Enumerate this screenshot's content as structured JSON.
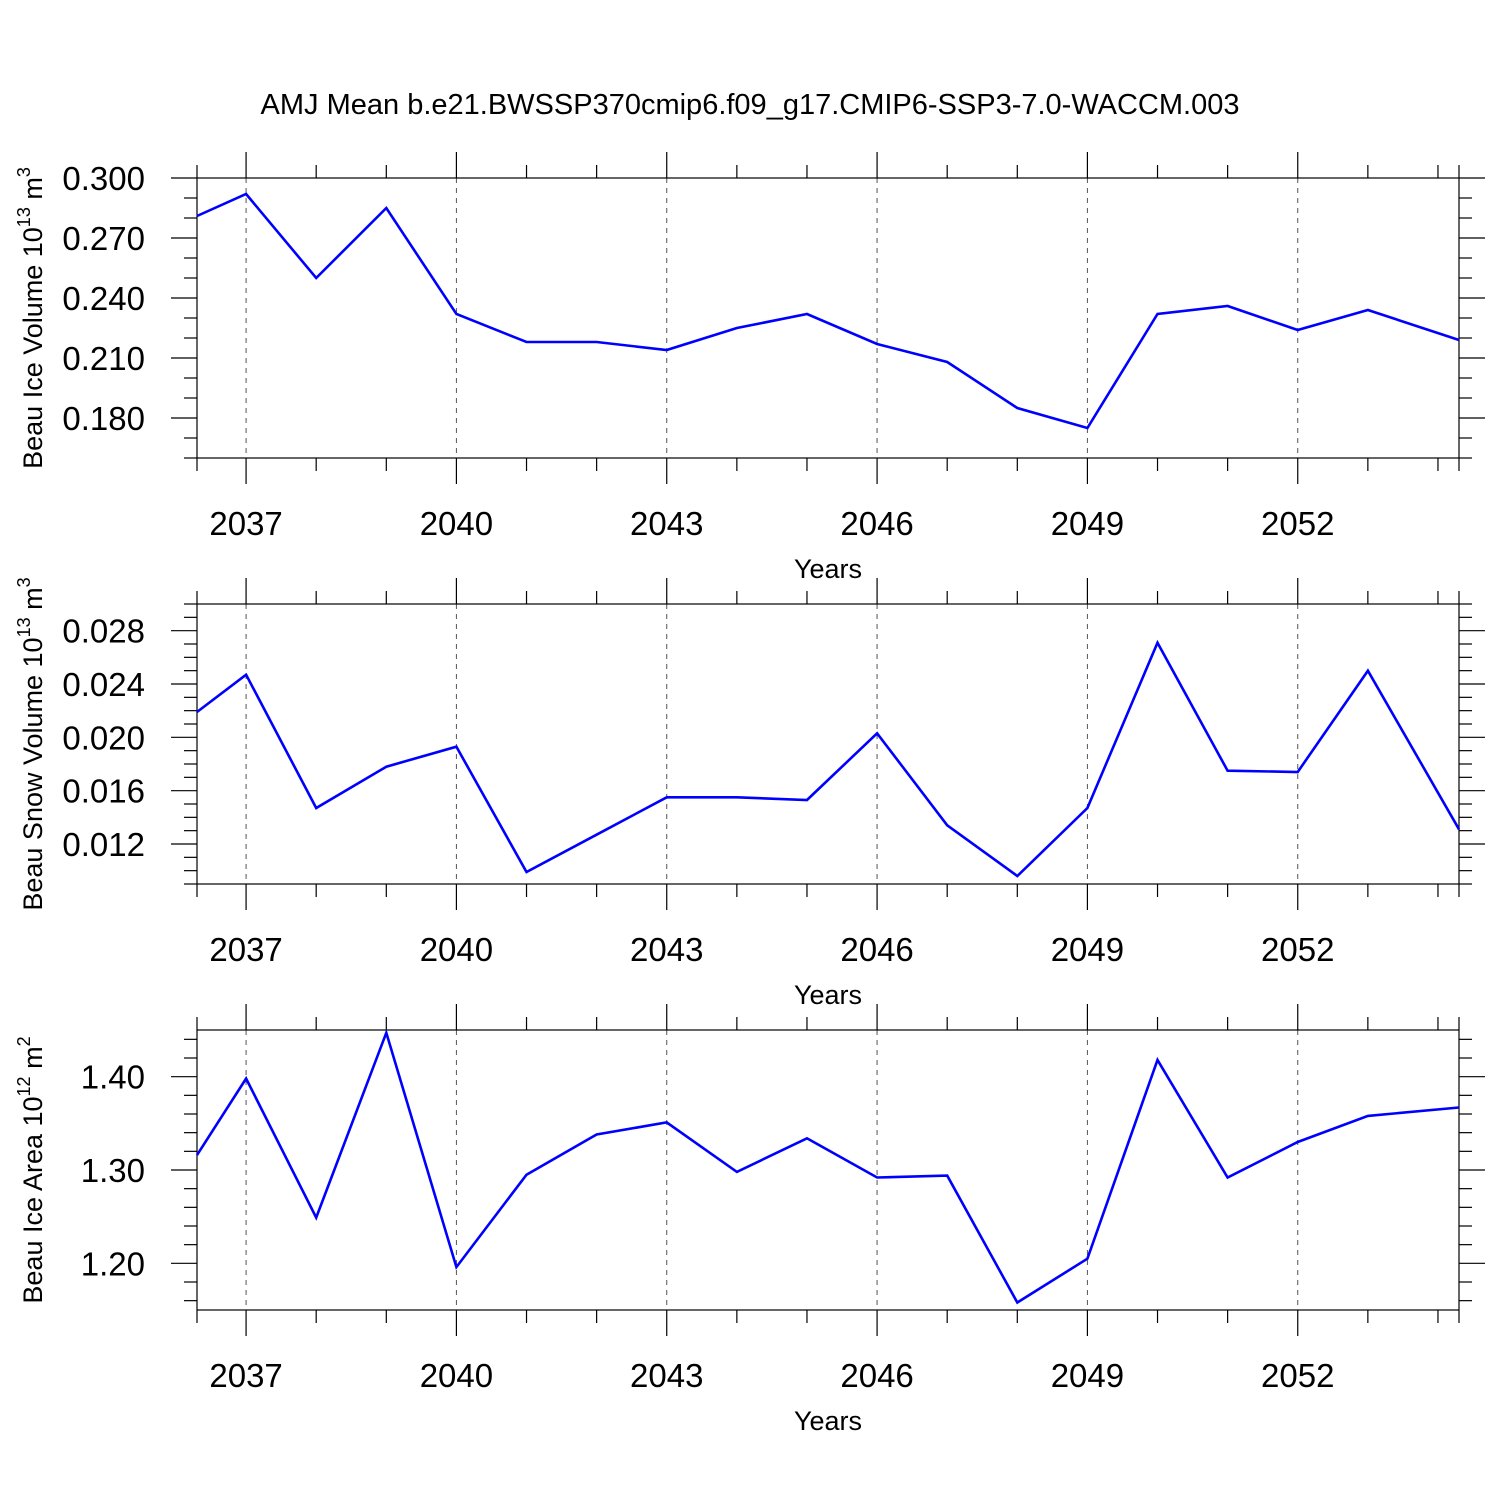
{
  "title": "AMJ Mean b.e21.BWSSP370cmip6.f09_g17.CMIP6-SSP3-7.0-WACCM.003",
  "line_color": "#0000ff",
  "chart_data": [
    {
      "type": "line",
      "ylabel": "Beau Ice Volume 10",
      "ylabel_exp": "13",
      "ylabel_unit": " m",
      "ylabel_unit_exp": "3",
      "xlabel": "Years",
      "xlim": [
        2036.3,
        2054.3
      ],
      "ylim": [
        0.16,
        0.3
      ],
      "x_ticks": [
        2037,
        2040,
        2043,
        2046,
        2049,
        2052
      ],
      "y_ticks": [
        0.18,
        0.21,
        0.24,
        0.27,
        0.3
      ],
      "y_tick_labels": [
        "0.180",
        "0.210",
        "0.240",
        "0.270",
        "0.300"
      ],
      "y_minor_step": 0.01,
      "x": [
        2036.3,
        2037,
        2038,
        2039,
        2040,
        2041,
        2042,
        2043,
        2044,
        2045,
        2046,
        2047,
        2048,
        2049,
        2050,
        2051,
        2052,
        2053,
        2054.3
      ],
      "values": [
        0.281,
        0.292,
        0.25,
        0.285,
        0.232,
        0.218,
        0.218,
        0.214,
        0.225,
        0.232,
        0.217,
        0.208,
        0.185,
        0.175,
        0.232,
        0.236,
        0.224,
        0.234,
        0.219
      ]
    },
    {
      "type": "line",
      "ylabel": "Beau Snow Volume 10",
      "ylabel_exp": "13",
      "ylabel_unit": " m",
      "ylabel_unit_exp": "3",
      "xlabel": "Years",
      "xlim": [
        2036.3,
        2054.3
      ],
      "ylim": [
        0.009,
        0.03
      ],
      "x_ticks": [
        2037,
        2040,
        2043,
        2046,
        2049,
        2052
      ],
      "y_ticks": [
        0.012,
        0.016,
        0.02,
        0.024,
        0.028
      ],
      "y_tick_labels": [
        "0.012",
        "0.016",
        "0.020",
        "0.024",
        "0.028"
      ],
      "y_minor_step": 0.001,
      "x": [
        2036.3,
        2037,
        2038,
        2039,
        2040,
        2041,
        2042,
        2043,
        2044,
        2045,
        2046,
        2047,
        2048,
        2049,
        2050,
        2051,
        2052,
        2053,
        2054.3
      ],
      "values": [
        0.0219,
        0.0247,
        0.0147,
        0.0178,
        0.0193,
        0.0099,
        0.0127,
        0.0155,
        0.0155,
        0.0153,
        0.0203,
        0.0134,
        0.0096,
        0.0147,
        0.0271,
        0.0175,
        0.0174,
        0.025,
        0.0131
      ]
    },
    {
      "type": "line",
      "ylabel": "Beau Ice Area 10",
      "ylabel_exp": "12",
      "ylabel_unit": " m",
      "ylabel_unit_exp": "2",
      "xlabel": "Years",
      "xlim": [
        2036.3,
        2054.3
      ],
      "ylim": [
        1.15,
        1.45
      ],
      "x_ticks": [
        2037,
        2040,
        2043,
        2046,
        2049,
        2052
      ],
      "y_ticks": [
        1.2,
        1.3,
        1.4
      ],
      "y_tick_labels": [
        "1.20",
        "1.30",
        "1.40"
      ],
      "y_minor_step": 0.02,
      "x": [
        2036.3,
        2037,
        2038,
        2039,
        2040,
        2041,
        2042,
        2043,
        2044,
        2045,
        2046,
        2047,
        2048,
        2049,
        2050,
        2051,
        2052,
        2053,
        2054.3
      ],
      "values": [
        1.316,
        1.398,
        1.249,
        1.447,
        1.196,
        1.295,
        1.338,
        1.351,
        1.298,
        1.334,
        1.292,
        1.294,
        1.158,
        1.205,
        1.418,
        1.292,
        1.33,
        1.358,
        1.367
      ]
    }
  ]
}
